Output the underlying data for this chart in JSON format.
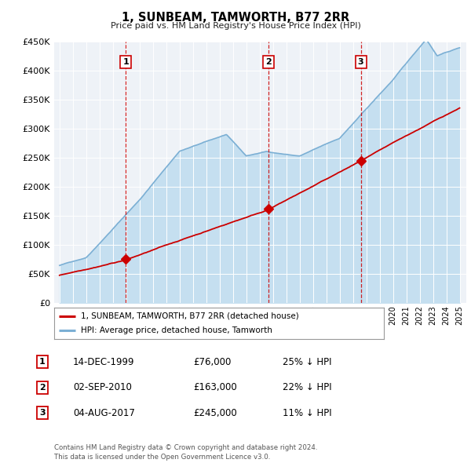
{
  "title": "1, SUNBEAM, TAMWORTH, B77 2RR",
  "subtitle": "Price paid vs. HM Land Registry's House Price Index (HPI)",
  "ylim": [
    0,
    450000
  ],
  "yticks": [
    0,
    50000,
    100000,
    150000,
    200000,
    250000,
    300000,
    350000,
    400000,
    450000
  ],
  "ytick_labels": [
    "£0",
    "£50K",
    "£100K",
    "£150K",
    "£200K",
    "£250K",
    "£300K",
    "£350K",
    "£400K",
    "£450K"
  ],
  "house_color": "#cc0000",
  "hpi_color": "#7bafd4",
  "hpi_fill_color": "#c5dff0",
  "vline_color": "#cc0000",
  "sale_points": [
    {
      "date_num": 1999.96,
      "price": 76000,
      "label": "1"
    },
    {
      "date_num": 2010.67,
      "price": 163000,
      "label": "2"
    },
    {
      "date_num": 2017.59,
      "price": 245000,
      "label": "3"
    }
  ],
  "table_rows": [
    {
      "num": "1",
      "date": "14-DEC-1999",
      "price": "£76,000",
      "pct": "25% ↓ HPI"
    },
    {
      "num": "2",
      "date": "02-SEP-2010",
      "price": "£163,000",
      "pct": "22% ↓ HPI"
    },
    {
      "num": "3",
      "date": "04-AUG-2017",
      "price": "£245,000",
      "pct": "11% ↓ HPI"
    }
  ],
  "legend_house": "1, SUNBEAM, TAMWORTH, B77 2RR (detached house)",
  "legend_hpi": "HPI: Average price, detached house, Tamworth",
  "footnote": "Contains HM Land Registry data © Crown copyright and database right 2024.\nThis data is licensed under the Open Government Licence v3.0.",
  "bg_color": "#eef2f7",
  "xlim_left": 1994.6,
  "xlim_right": 2025.5
}
